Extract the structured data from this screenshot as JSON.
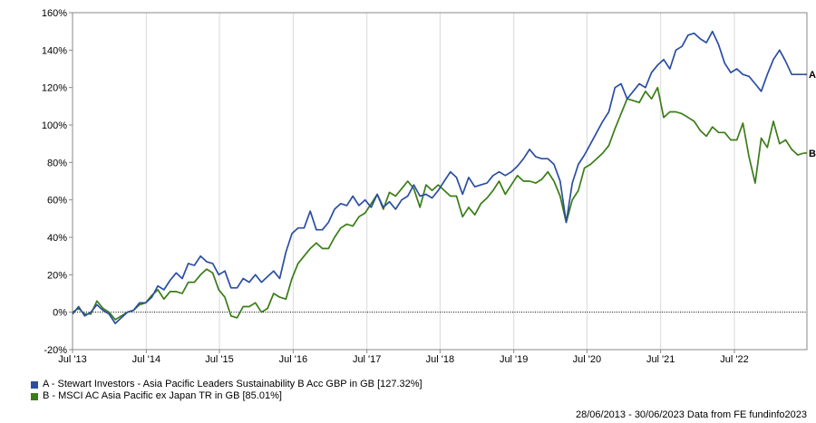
{
  "chart_data": {
    "type": "line",
    "ylim": [
      -20,
      160
    ],
    "y_ticks": [
      -20,
      0,
      20,
      40,
      60,
      80,
      100,
      120,
      140,
      160
    ],
    "y_tick_labels": [
      "-20%",
      "0%",
      "20%",
      "40%",
      "60%",
      "80%",
      "100%",
      "120%",
      "140%",
      "160%"
    ],
    "x_ticks": [
      0,
      12.1,
      24.1,
      36.2,
      48.3,
      60.3,
      72.4,
      84.4,
      96.5,
      108.6
    ],
    "x_tick_labels": [
      "Jul '13",
      "Jul '14",
      "Jul '15",
      "Jul '16",
      "Jul '17",
      "Jul '18",
      "Jul '19",
      "Jul '20",
      "Jul '21",
      "Jul '22"
    ],
    "xlim": [
      0,
      120.5
    ],
    "zero_line": true,
    "grid": "vertical",
    "series": [
      {
        "name": "A - Stewart Investors - Asia Pacific Leaders Sustainability B Acc GBP in GB [127.32%]",
        "end_label": "A",
        "color": "#2b4ea2",
        "x": [
          0,
          1,
          2,
          3,
          4,
          5,
          6,
          7,
          8,
          9,
          10,
          11,
          12,
          13,
          14,
          15,
          16,
          17,
          18,
          19,
          20,
          21,
          22,
          23,
          24,
          25,
          26,
          27,
          28,
          29,
          30,
          31,
          32,
          33,
          34,
          35,
          36,
          37,
          38,
          39,
          40,
          41,
          42,
          43,
          44,
          45,
          46,
          47,
          48,
          49,
          50,
          51,
          52,
          53,
          54,
          55,
          56,
          57,
          58,
          59,
          60,
          61,
          62,
          63,
          64,
          65,
          66,
          67,
          68,
          69,
          70,
          71,
          72,
          73,
          74,
          75,
          76,
          77,
          78,
          79,
          80,
          81,
          82,
          83,
          84,
          85,
          86,
          87,
          88,
          89,
          90,
          91,
          92,
          93,
          94,
          95,
          96,
          97,
          98,
          99,
          100,
          101,
          102,
          103,
          104,
          105,
          106,
          107,
          108,
          109,
          110,
          111,
          112,
          113,
          114,
          115,
          116,
          117,
          118,
          119,
          120
        ],
        "values": [
          -1,
          3,
          -2,
          0,
          4,
          1,
          -1,
          -6,
          -3,
          0,
          1,
          5,
          5,
          8,
          14,
          12,
          17,
          21,
          18,
          26,
          25,
          30,
          27,
          26,
          20,
          22,
          13,
          13,
          18,
          16,
          20,
          16,
          19,
          22,
          18,
          32,
          42,
          45,
          45,
          54,
          44,
          44,
          48,
          55,
          58,
          57,
          62,
          57,
          60,
          56,
          63,
          56,
          59,
          55,
          60,
          62,
          68,
          62,
          63,
          61,
          65,
          70,
          75,
          72,
          63,
          72,
          67,
          68,
          69,
          73,
          75,
          73,
          75,
          78,
          82,
          87,
          83,
          82,
          82,
          79,
          70,
          48,
          69,
          79,
          84,
          90,
          96,
          102,
          107,
          120,
          122,
          114,
          118,
          122,
          120,
          128,
          132,
          135,
          130,
          140,
          142,
          148,
          149,
          146,
          144,
          150,
          143,
          133,
          128,
          130,
          127,
          126,
          122,
          118,
          127,
          135,
          140,
          134,
          127,
          127,
          127
        ]
      },
      {
        "name": "B - MSCI AC Asia Pacific ex Japan TR in GB [85.01%]",
        "end_label": "B",
        "color": "#3a7d17",
        "x": [
          0,
          1,
          2,
          3,
          4,
          5,
          6,
          7,
          8,
          9,
          10,
          11,
          12,
          13,
          14,
          15,
          16,
          17,
          18,
          19,
          20,
          21,
          22,
          23,
          24,
          25,
          26,
          27,
          28,
          29,
          30,
          31,
          32,
          33,
          34,
          35,
          36,
          37,
          38,
          39,
          40,
          41,
          42,
          43,
          44,
          45,
          46,
          47,
          48,
          49,
          50,
          51,
          52,
          53,
          54,
          55,
          56,
          57,
          58,
          59,
          60,
          61,
          62,
          63,
          64,
          65,
          66,
          67,
          68,
          69,
          70,
          71,
          72,
          73,
          74,
          75,
          76,
          77,
          78,
          79,
          80,
          81,
          82,
          83,
          84,
          85,
          86,
          87,
          88,
          89,
          90,
          91,
          92,
          93,
          94,
          95,
          96,
          97,
          98,
          99,
          100,
          101,
          102,
          103,
          104,
          105,
          106,
          107,
          108,
          109,
          110,
          111,
          112,
          113,
          114,
          115,
          116,
          117,
          118,
          119,
          120
        ],
        "values": [
          0,
          2,
          -1,
          -1,
          6,
          2,
          0,
          -4,
          -2,
          0,
          1,
          4,
          5,
          9,
          12,
          7,
          11,
          11,
          10,
          16,
          16,
          20,
          23,
          21,
          12,
          8,
          -2,
          -3,
          3,
          3,
          5,
          0,
          2,
          10,
          8,
          7,
          18,
          26,
          30,
          34,
          37,
          34,
          34,
          40,
          45,
          47,
          46,
          51,
          53,
          58,
          63,
          55,
          64,
          62,
          66,
          70,
          66,
          56,
          68,
          65,
          68,
          65,
          62,
          62,
          51,
          56,
          52,
          58,
          61,
          65,
          70,
          63,
          68,
          73,
          70,
          70,
          69,
          71,
          75,
          70,
          62,
          48,
          60,
          65,
          77,
          79,
          82,
          85,
          89,
          98,
          106,
          114,
          113,
          112,
          118,
          114,
          120,
          104,
          107,
          107,
          106,
          104,
          102,
          97,
          94,
          99,
          96,
          96,
          92,
          92,
          101,
          83,
          69,
          93,
          88,
          102,
          90,
          92,
          87,
          84,
          85
        ]
      }
    ]
  },
  "footer": {
    "text": "28/06/2013 - 30/06/2023 Data from FE fundinfo2023"
  }
}
